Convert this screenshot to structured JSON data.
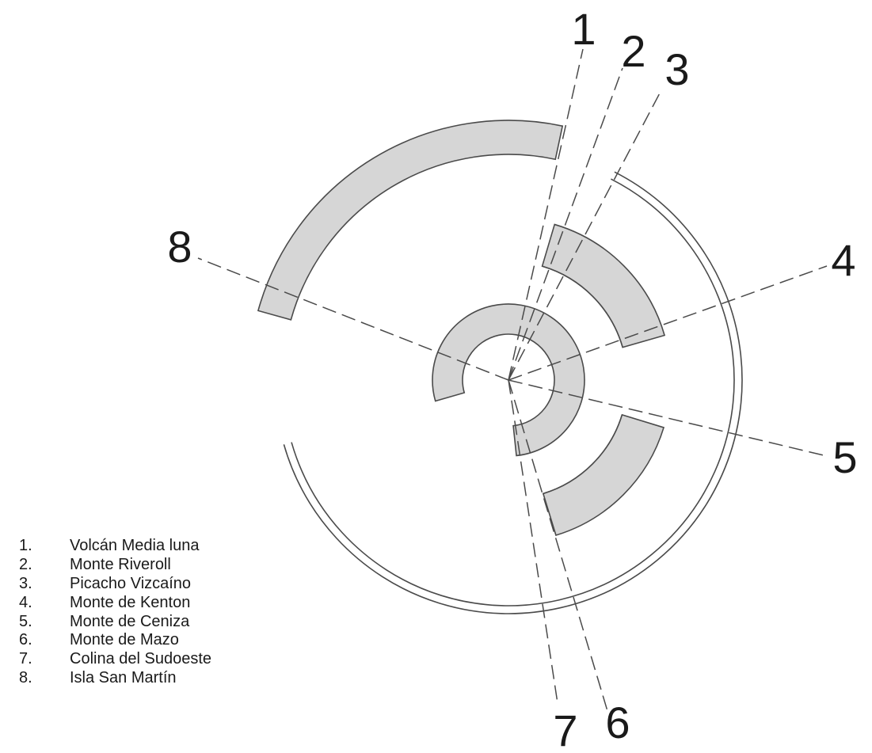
{
  "diagram": {
    "rays": [
      {
        "number": "1",
        "name": "Volcán Media luna"
      },
      {
        "number": "2",
        "name": "Monte Riveroll"
      },
      {
        "number": "3",
        "name": "Picacho Vizcaíno"
      },
      {
        "number": "4",
        "name": "Monte de Kenton"
      },
      {
        "number": "5",
        "name": "Monte de Ceniza"
      },
      {
        "number": "6",
        "name": "Monte de Mazo"
      },
      {
        "number": "7",
        "name": "Colina del Sudoeste"
      },
      {
        "number": "8",
        "name": "Isla San Martín"
      }
    ]
  },
  "legend": [
    {
      "num": "1.",
      "name": "Volcán Media luna"
    },
    {
      "num": "2.",
      "name": "Monte Riveroll"
    },
    {
      "num": "3.",
      "name": "Picacho Vizcaíno"
    },
    {
      "num": "4.",
      "name": "Monte de Kenton"
    },
    {
      "num": "5.",
      "name": "Monte de Ceniza"
    },
    {
      "num": "6.",
      "name": "Monte de Mazo"
    },
    {
      "num": "7.",
      "name": "Colina del Sudoeste"
    },
    {
      "num": "8.",
      "name": "Isla San Martín"
    }
  ],
  "colors": {
    "band_fill": "#d6d6d6",
    "stroke": "#4a4a4a",
    "text": "#1a1a1a"
  }
}
